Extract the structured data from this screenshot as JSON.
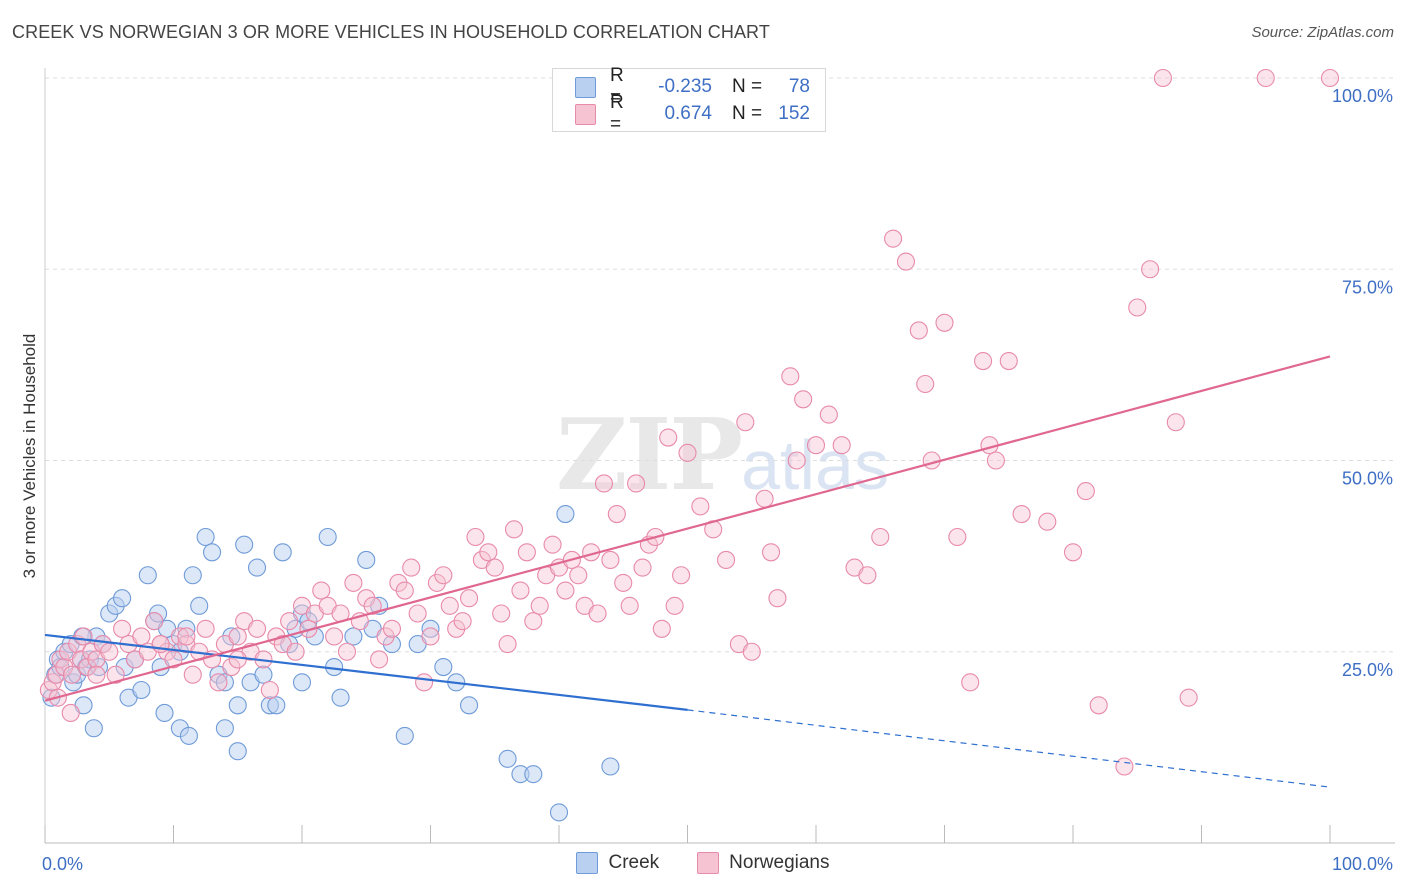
{
  "title": "CREEK VS NORWEGIAN 3 OR MORE VEHICLES IN HOUSEHOLD CORRELATION CHART",
  "source": "Source: ZipAtlas.com",
  "watermark": {
    "main": "ZIP",
    "sub": "atlas"
  },
  "colors": {
    "creek_fill": "#b9d0f0",
    "creek_stroke": "#6f9bd8",
    "creek_line": "#2e6fd0",
    "norw_fill": "#f6c3d3",
    "norw_stroke": "#e88aaa",
    "norw_line": "#e06890",
    "tick_label": "#3f6fc4"
  },
  "legend": {
    "rows": [
      {
        "label": "R =",
        "r": "-0.235",
        "nlabel": "N =",
        "n": "78"
      },
      {
        "label": "R =",
        "r": "0.674",
        "nlabel": "N =",
        "n": "152"
      }
    ]
  },
  "bottom_legend": {
    "creek": "Creek",
    "norwegians": "Norwegians"
  },
  "chart_data": {
    "type": "scatter",
    "title": "CREEK VS NORWEGIAN 3 OR MORE VEHICLES IN HOUSEHOLD CORRELATION CHART",
    "xlabel": "",
    "ylabel": "3 or more Vehicles in Household",
    "xlim": [
      0,
      100
    ],
    "ylim": [
      0,
      100
    ],
    "x_tick_labels": [
      "0.0%",
      "100.0%"
    ],
    "y_ticks": [
      25,
      50,
      75,
      100
    ],
    "y_tick_labels": [
      "25.0%",
      "50.0%",
      "75.0%",
      "100.0%"
    ],
    "series": [
      {
        "name": "Creek",
        "R": -0.235,
        "N": 78,
        "trend": {
          "x0": 0,
          "y0": 27.2,
          "x1": 50,
          "y1": 17.4,
          "dashed_to_x": 100,
          "dashed_to_y": 7.3
        },
        "points": [
          [
            0.5,
            19
          ],
          [
            0.8,
            22
          ],
          [
            1,
            24
          ],
          [
            1.2,
            23
          ],
          [
            1.5,
            25
          ],
          [
            2,
            26
          ],
          [
            2.2,
            21
          ],
          [
            2.5,
            22
          ],
          [
            2.8,
            24
          ],
          [
            3,
            18
          ],
          [
            3.2,
            23
          ],
          [
            3.5,
            24
          ],
          [
            4,
            27
          ],
          [
            4.2,
            23
          ],
          [
            4.5,
            26
          ],
          [
            5,
            30
          ],
          [
            5.5,
            31
          ],
          [
            6,
            32
          ],
          [
            6.2,
            23
          ],
          [
            6.5,
            19
          ],
          [
            7,
            24
          ],
          [
            7.5,
            20
          ],
          [
            8,
            35
          ],
          [
            8.5,
            29
          ],
          [
            8.8,
            30
          ],
          [
            9,
            23
          ],
          [
            9.5,
            28
          ],
          [
            10,
            26
          ],
          [
            10.5,
            25
          ],
          [
            11,
            28
          ],
          [
            11.5,
            35
          ],
          [
            12,
            31
          ],
          [
            12.5,
            40
          ],
          [
            13,
            38
          ],
          [
            13.5,
            22
          ],
          [
            14,
            21
          ],
          [
            14.5,
            27
          ],
          [
            15,
            18
          ],
          [
            15.5,
            39
          ],
          [
            16,
            21
          ],
          [
            16.5,
            36
          ],
          [
            17,
            22
          ],
          [
            17.5,
            18
          ],
          [
            18,
            18
          ],
          [
            18.5,
            38
          ],
          [
            19,
            26
          ],
          [
            19.5,
            28
          ],
          [
            20,
            30
          ],
          [
            20.5,
            29
          ],
          [
            21,
            27
          ],
          [
            22,
            40
          ],
          [
            22.5,
            23
          ],
          [
            23,
            19
          ],
          [
            24,
            27
          ],
          [
            25,
            37
          ],
          [
            25.5,
            28
          ],
          [
            26,
            31
          ],
          [
            27,
            26
          ],
          [
            28,
            14
          ],
          [
            29,
            26
          ],
          [
            30,
            28
          ],
          [
            31,
            23
          ],
          [
            32,
            21
          ],
          [
            33,
            18
          ],
          [
            36,
            11
          ],
          [
            37,
            9
          ],
          [
            38,
            9
          ],
          [
            40,
            4
          ],
          [
            40.5,
            43
          ],
          [
            44,
            10
          ],
          [
            3.8,
            15
          ],
          [
            9.3,
            17
          ],
          [
            10.5,
            15
          ],
          [
            11.2,
            14
          ],
          [
            14,
            15
          ],
          [
            15,
            12
          ],
          [
            20,
            21
          ],
          [
            2.9,
            27
          ]
        ]
      },
      {
        "name": "Norwegians",
        "R": 0.674,
        "N": 152,
        "trend": {
          "x0": 0,
          "y0": 18.6,
          "x1": 100,
          "y1": 63.6
        },
        "points": [
          [
            0.3,
            20
          ],
          [
            0.6,
            21
          ],
          [
            0.9,
            22
          ],
          [
            1.2,
            24
          ],
          [
            1.5,
            23
          ],
          [
            1.8,
            25
          ],
          [
            2.1,
            22
          ],
          [
            2.5,
            26
          ],
          [
            2.8,
            24
          ],
          [
            3,
            27
          ],
          [
            3.3,
            23
          ],
          [
            3.6,
            25
          ],
          [
            4,
            24
          ],
          [
            4.5,
            26
          ],
          [
            5,
            25
          ],
          [
            5.5,
            22
          ],
          [
            6,
            28
          ],
          [
            6.5,
            26
          ],
          [
            7,
            24
          ],
          [
            7.5,
            27
          ],
          [
            8,
            25
          ],
          [
            8.5,
            29
          ],
          [
            9,
            26
          ],
          [
            9.5,
            25
          ],
          [
            10,
            24
          ],
          [
            10.5,
            27
          ],
          [
            11,
            26
          ],
          [
            11.5,
            22
          ],
          [
            12,
            25
          ],
          [
            12.5,
            28
          ],
          [
            13,
            24
          ],
          [
            13.5,
            21
          ],
          [
            14,
            26
          ],
          [
            14.5,
            23
          ],
          [
            15,
            27
          ],
          [
            15.5,
            29
          ],
          [
            16,
            25
          ],
          [
            16.5,
            28
          ],
          [
            17,
            24
          ],
          [
            17.5,
            20
          ],
          [
            18,
            27
          ],
          [
            18.5,
            26
          ],
          [
            19,
            29
          ],
          [
            19.5,
            25
          ],
          [
            20,
            31
          ],
          [
            20.5,
            28
          ],
          [
            21,
            30
          ],
          [
            21.5,
            33
          ],
          [
            22,
            31
          ],
          [
            22.5,
            27
          ],
          [
            23,
            30
          ],
          [
            23.5,
            25
          ],
          [
            24,
            34
          ],
          [
            24.5,
            29
          ],
          [
            25,
            32
          ],
          [
            25.5,
            31
          ],
          [
            26,
            24
          ],
          [
            26.5,
            27
          ],
          [
            27,
            28
          ],
          [
            27.5,
            34
          ],
          [
            28,
            33
          ],
          [
            28.5,
            36
          ],
          [
            29,
            30
          ],
          [
            29.5,
            21
          ],
          [
            30,
            27
          ],
          [
            30.5,
            34
          ],
          [
            31,
            35
          ],
          [
            31.5,
            31
          ],
          [
            32,
            28
          ],
          [
            32.5,
            29
          ],
          [
            33,
            32
          ],
          [
            33.5,
            40
          ],
          [
            34,
            37
          ],
          [
            34.5,
            38
          ],
          [
            35,
            36
          ],
          [
            35.5,
            30
          ],
          [
            36,
            26
          ],
          [
            36.5,
            41
          ],
          [
            37,
            33
          ],
          [
            37.5,
            38
          ],
          [
            38,
            29
          ],
          [
            38.5,
            31
          ],
          [
            39,
            35
          ],
          [
            39.5,
            39
          ],
          [
            40,
            36
          ],
          [
            40.5,
            33
          ],
          [
            41,
            37
          ],
          [
            41.5,
            35
          ],
          [
            42,
            31
          ],
          [
            42.5,
            38
          ],
          [
            43,
            30
          ],
          [
            43.5,
            47
          ],
          [
            44,
            37
          ],
          [
            44.5,
            43
          ],
          [
            45,
            34
          ],
          [
            45.5,
            31
          ],
          [
            46,
            47
          ],
          [
            46.5,
            36
          ],
          [
            47,
            39
          ],
          [
            47.5,
            40
          ],
          [
            48,
            28
          ],
          [
            48.5,
            53
          ],
          [
            49,
            31
          ],
          [
            49.5,
            35
          ],
          [
            50,
            51
          ],
          [
            51,
            44
          ],
          [
            52,
            41
          ],
          [
            53,
            37
          ],
          [
            54,
            26
          ],
          [
            54.5,
            55
          ],
          [
            55,
            25
          ],
          [
            56,
            45
          ],
          [
            56.5,
            38
          ],
          [
            57,
            32
          ],
          [
            58,
            61
          ],
          [
            58.5,
            50
          ],
          [
            59,
            58
          ],
          [
            60,
            52
          ],
          [
            61,
            56
          ],
          [
            62,
            52
          ],
          [
            63,
            36
          ],
          [
            64,
            35
          ],
          [
            65,
            40
          ],
          [
            66,
            79
          ],
          [
            67,
            76
          ],
          [
            68,
            67
          ],
          [
            68.5,
            60
          ],
          [
            69,
            50
          ],
          [
            70,
            68
          ],
          [
            71,
            40
          ],
          [
            72,
            21
          ],
          [
            73,
            63
          ],
          [
            73.5,
            52
          ],
          [
            74,
            50
          ],
          [
            75,
            63
          ],
          [
            76,
            43
          ],
          [
            78,
            42
          ],
          [
            80,
            38
          ],
          [
            81,
            46
          ],
          [
            82,
            18
          ],
          [
            84,
            10
          ],
          [
            85,
            70
          ],
          [
            86,
            75
          ],
          [
            87,
            100
          ],
          [
            88,
            55
          ],
          [
            89,
            19
          ],
          [
            95,
            100
          ],
          [
            100,
            100
          ],
          [
            2,
            17
          ],
          [
            9,
            26
          ],
          [
            11,
            27
          ],
          [
            15,
            24
          ],
          [
            1,
            19
          ],
          [
            4,
            22
          ]
        ]
      }
    ]
  }
}
